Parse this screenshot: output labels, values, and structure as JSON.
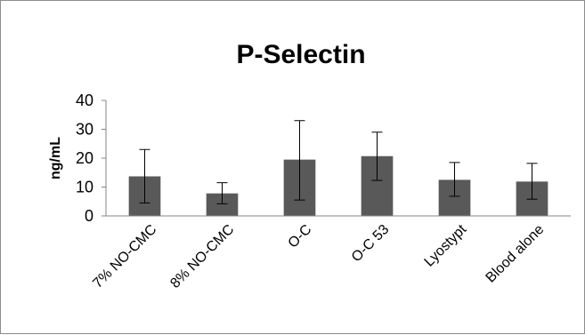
{
  "chart_data": {
    "type": "bar",
    "title": "P-Selectin",
    "xlabel": "",
    "ylabel": "ng/mL",
    "ylim": [
      0,
      40
    ],
    "yticks": [
      0,
      10,
      20,
      30,
      40
    ],
    "grid": false,
    "legend": "none",
    "categories": [
      "7% NO-CMC",
      "8% NO-CMC",
      "O-C",
      "O-C 53",
      "Lyostypt",
      "Blood alone"
    ],
    "values": [
      13.7,
      7.8,
      19.5,
      20.7,
      12.5,
      11.9
    ],
    "error_low": [
      4.5,
      4.2,
      5.5,
      12.3,
      6.8,
      5.8
    ],
    "error_high": [
      23.0,
      11.5,
      33.0,
      29.0,
      18.5,
      18.2
    ],
    "bar_color": "#595959",
    "axis_color": "#868686"
  }
}
